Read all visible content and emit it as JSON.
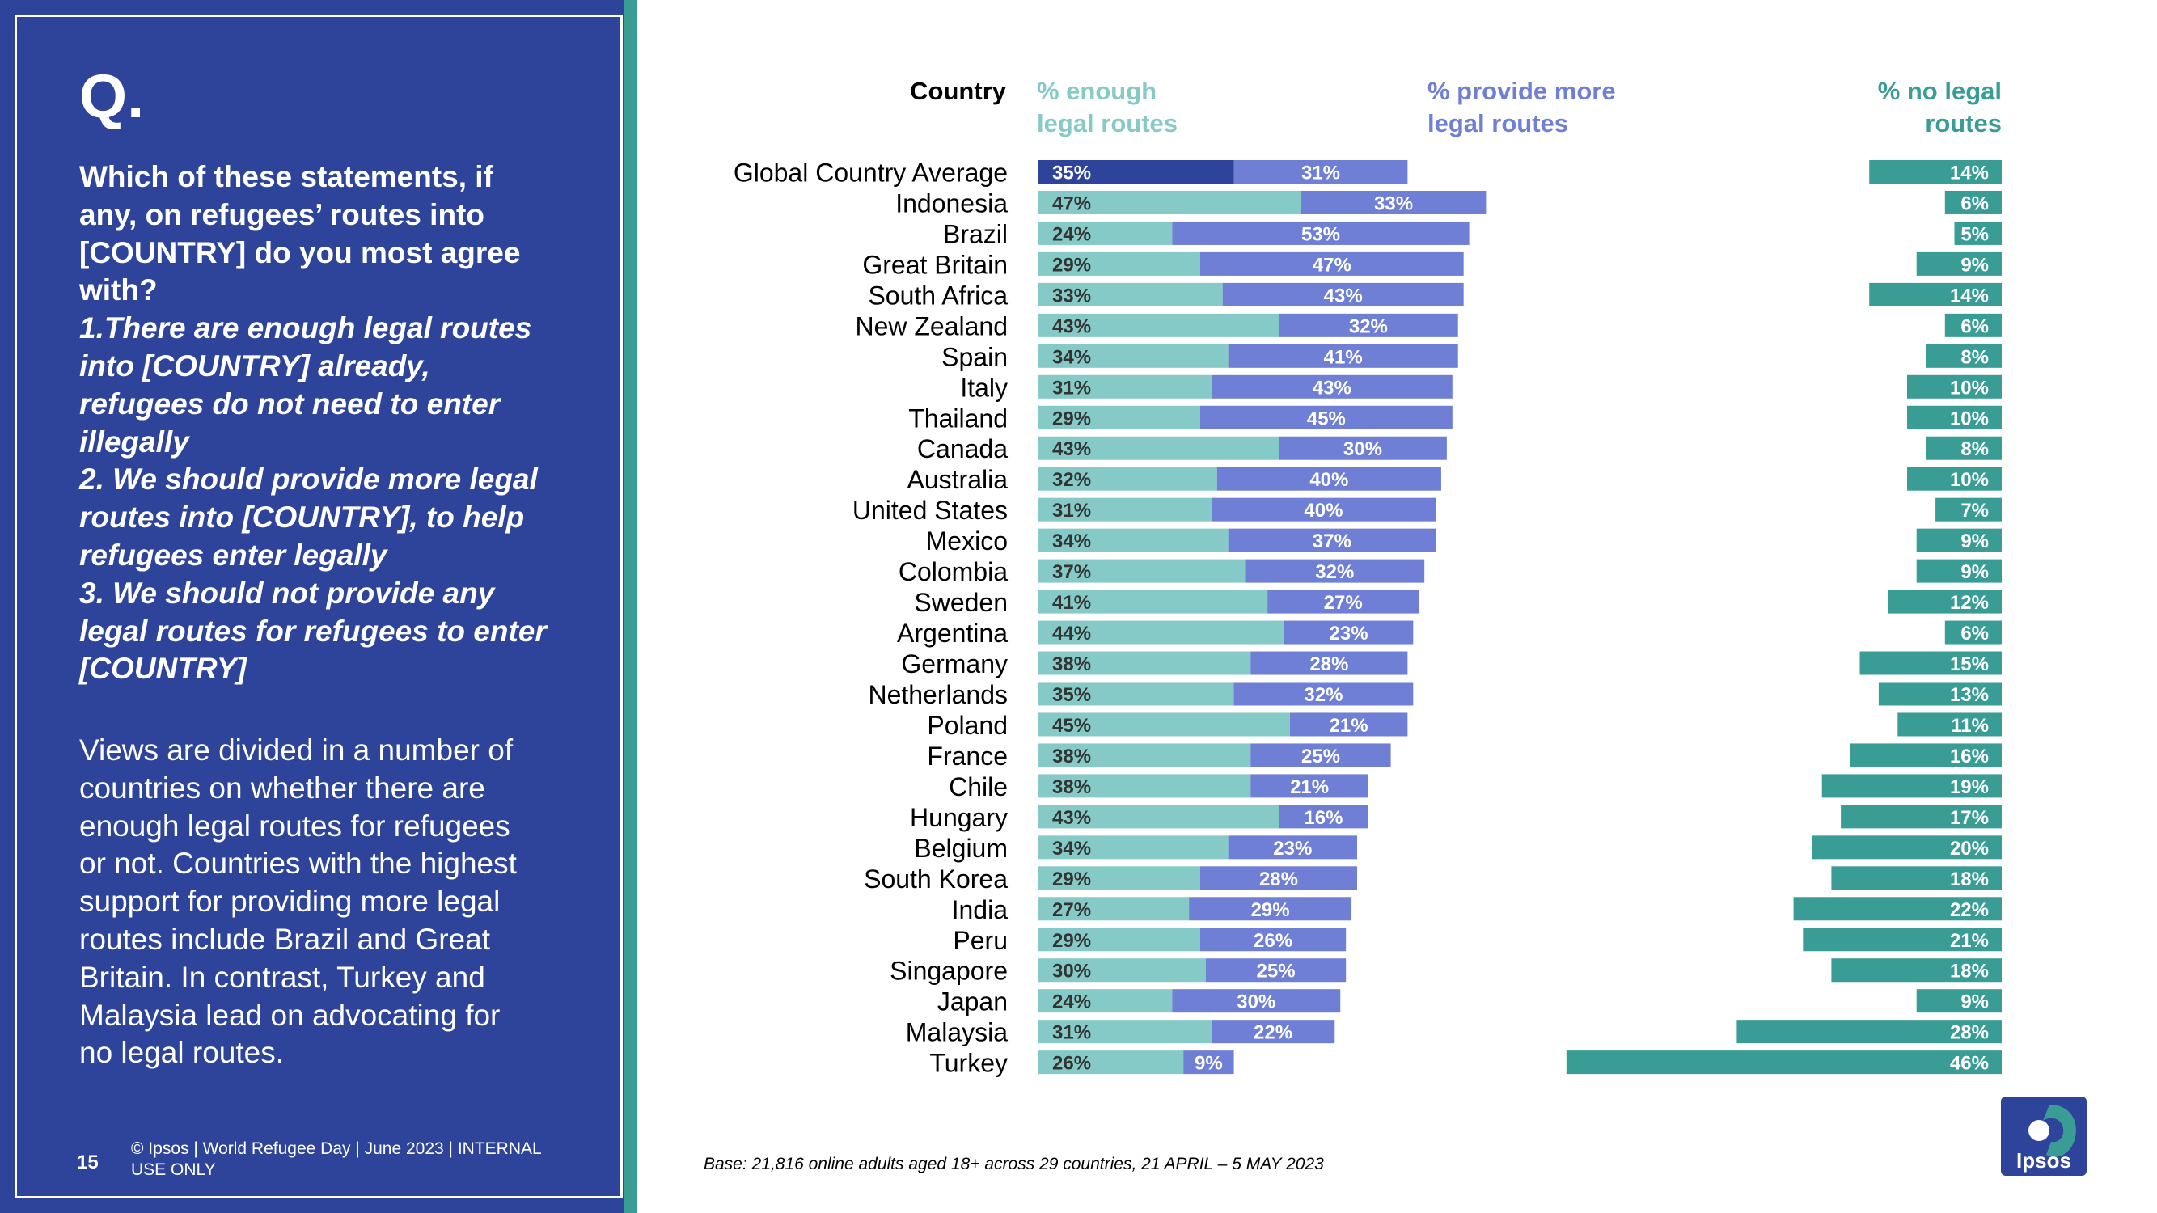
{
  "slide": {
    "q_label": "Q.",
    "question_lines": [
      "Which of these statements, if",
      "any, on refugees’ routes into",
      "[COUNTRY] do you most agree",
      "with?"
    ],
    "option_lines": [
      "1.There are enough legal routes",
      "into [COUNTRY] already,",
      "refugees do not need to enter",
      "illegally",
      "2. We should provide more legal",
      "routes into [COUNTRY], to help",
      "refugees enter legally",
      "3. We should not provide any",
      "legal routes for refugees to enter",
      "[COUNTRY]"
    ],
    "summary_lines": [
      "Views are divided in a number of",
      "countries on whether there are",
      "enough legal routes for refugees",
      "or not.  Countries with the highest",
      "support for providing more legal",
      "routes include Brazil and Great",
      "Britain.  In contrast, Turkey and",
      "Malaysia lead on advocating for",
      "no legal routes."
    ],
    "page_number": "15",
    "copyright_lines": [
      "© Ipsos | World Refugee Day | June 2023 | INTERNAL",
      "USE ONLY"
    ],
    "base_note": "Base: 21,816 online adults aged 18+ across 29 countries,  21 APRIL – 5 MAY 2023",
    "logo_text": "Ipsos"
  },
  "headers": {
    "country": "Country",
    "enough": [
      "% enough",
      "legal routes"
    ],
    "more": [
      "% provide more",
      "legal routes"
    ],
    "none": [
      "% no legal",
      "routes"
    ]
  },
  "colors": {
    "panel": "#2e449b",
    "strip": "#3a9d95",
    "enough": "#85cac6",
    "enough_highlight": "#2e449b",
    "more": "#6f7fd5",
    "none": "#3a9d95",
    "logo": "#2e449b"
  },
  "chart_data": {
    "type": "bar",
    "orientation": "horizontal",
    "stacked": true,
    "categories": [
      "Global Country Average",
      "Indonesia",
      "Brazil",
      "Great Britain",
      "South Africa",
      "New Zealand",
      "Spain",
      "Italy",
      "Thailand",
      "Canada",
      "Australia",
      "United States",
      "Mexico",
      "Colombia",
      "Sweden",
      "Argentina",
      "Germany",
      "Netherlands",
      "Poland",
      "France",
      "Chile",
      "Hungary",
      "Belgium",
      "South Korea",
      "India",
      "Peru",
      "Singapore",
      "Japan",
      "Malaysia",
      "Turkey"
    ],
    "series": [
      {
        "name": "% enough legal routes",
        "values": [
          35,
          47,
          24,
          29,
          33,
          43,
          34,
          31,
          29,
          43,
          32,
          31,
          34,
          37,
          41,
          44,
          38,
          35,
          45,
          38,
          38,
          43,
          34,
          29,
          27,
          29,
          30,
          24,
          31,
          26
        ]
      },
      {
        "name": "% provide more legal routes",
        "values": [
          31,
          33,
          53,
          47,
          43,
          32,
          41,
          43,
          45,
          30,
          40,
          40,
          37,
          32,
          27,
          23,
          28,
          32,
          21,
          25,
          21,
          16,
          23,
          28,
          29,
          26,
          25,
          30,
          22,
          9
        ]
      },
      {
        "name": "% no legal routes",
        "values": [
          14,
          6,
          5,
          9,
          14,
          6,
          8,
          10,
          10,
          8,
          10,
          7,
          9,
          9,
          12,
          6,
          15,
          13,
          11,
          16,
          19,
          17,
          20,
          18,
          22,
          21,
          18,
          9,
          28,
          46
        ]
      }
    ],
    "unit": "%",
    "xlim": [
      0,
      100
    ]
  }
}
